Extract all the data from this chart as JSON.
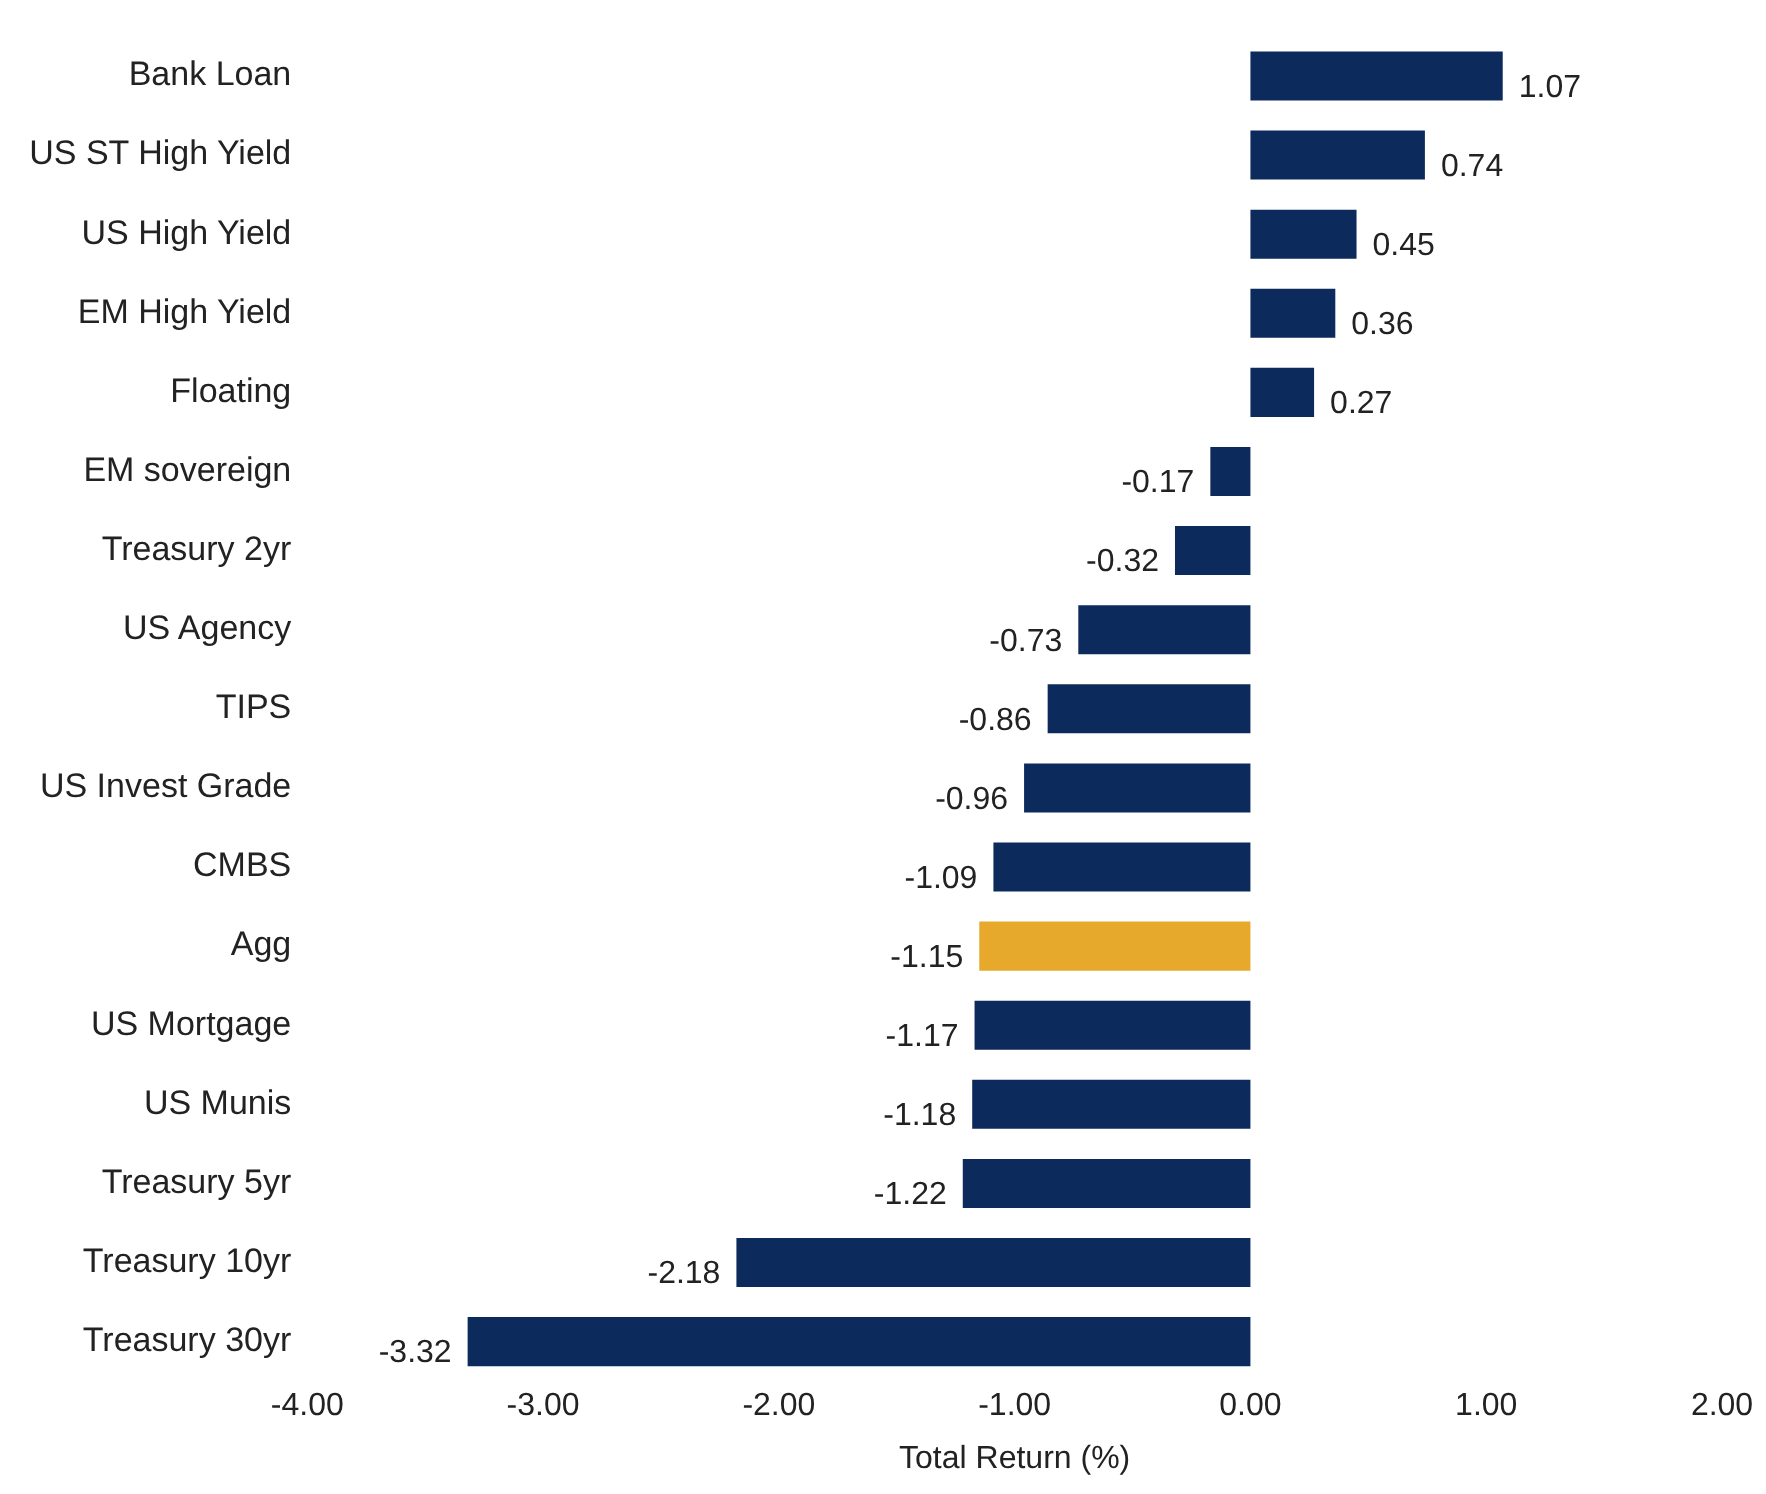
{
  "chart_data": {
    "type": "bar",
    "orientation": "horizontal",
    "xlabel": "Total Return (%)",
    "categories": [
      "Bank Loan",
      "US ST High Yield",
      "US High Yield",
      "EM High Yield",
      "Floating",
      "EM sovereign",
      "Treasury 2yr",
      "US Agency",
      "TIPS",
      "US Invest Grade",
      "CMBS",
      "Agg",
      "US Mortgage",
      "US Munis",
      "Treasury 5yr",
      "Treasury 10yr",
      "Treasury 30yr"
    ],
    "values": [
      1.07,
      0.74,
      0.45,
      0.36,
      0.27,
      -0.17,
      -0.32,
      -0.73,
      -0.86,
      -0.96,
      -1.09,
      -1.15,
      -1.17,
      -1.18,
      -1.22,
      -2.18,
      -3.32
    ],
    "colors": [
      "#0c2a5b",
      "#0c2a5b",
      "#0c2a5b",
      "#0c2a5b",
      "#0c2a5b",
      "#0c2a5b",
      "#0c2a5b",
      "#0c2a5b",
      "#0c2a5b",
      "#0c2a5b",
      "#0c2a5b",
      "#e6a92c",
      "#0c2a5b",
      "#0c2a5b",
      "#0c2a5b",
      "#0c2a5b",
      "#0c2a5b"
    ],
    "xlim": [
      -4,
      2
    ],
    "xticks": [
      {
        "value": -4,
        "label": "-4.00"
      },
      {
        "value": -3,
        "label": "-3.00"
      },
      {
        "value": -2,
        "label": "-2.00"
      },
      {
        "value": -1,
        "label": "-1.00"
      },
      {
        "value": 0,
        "label": "0.00"
      },
      {
        "value": 1,
        "label": "1.00"
      },
      {
        "value": 2,
        "label": "2.00"
      }
    ],
    "data_labels": true,
    "grid": false,
    "legend": false
  }
}
